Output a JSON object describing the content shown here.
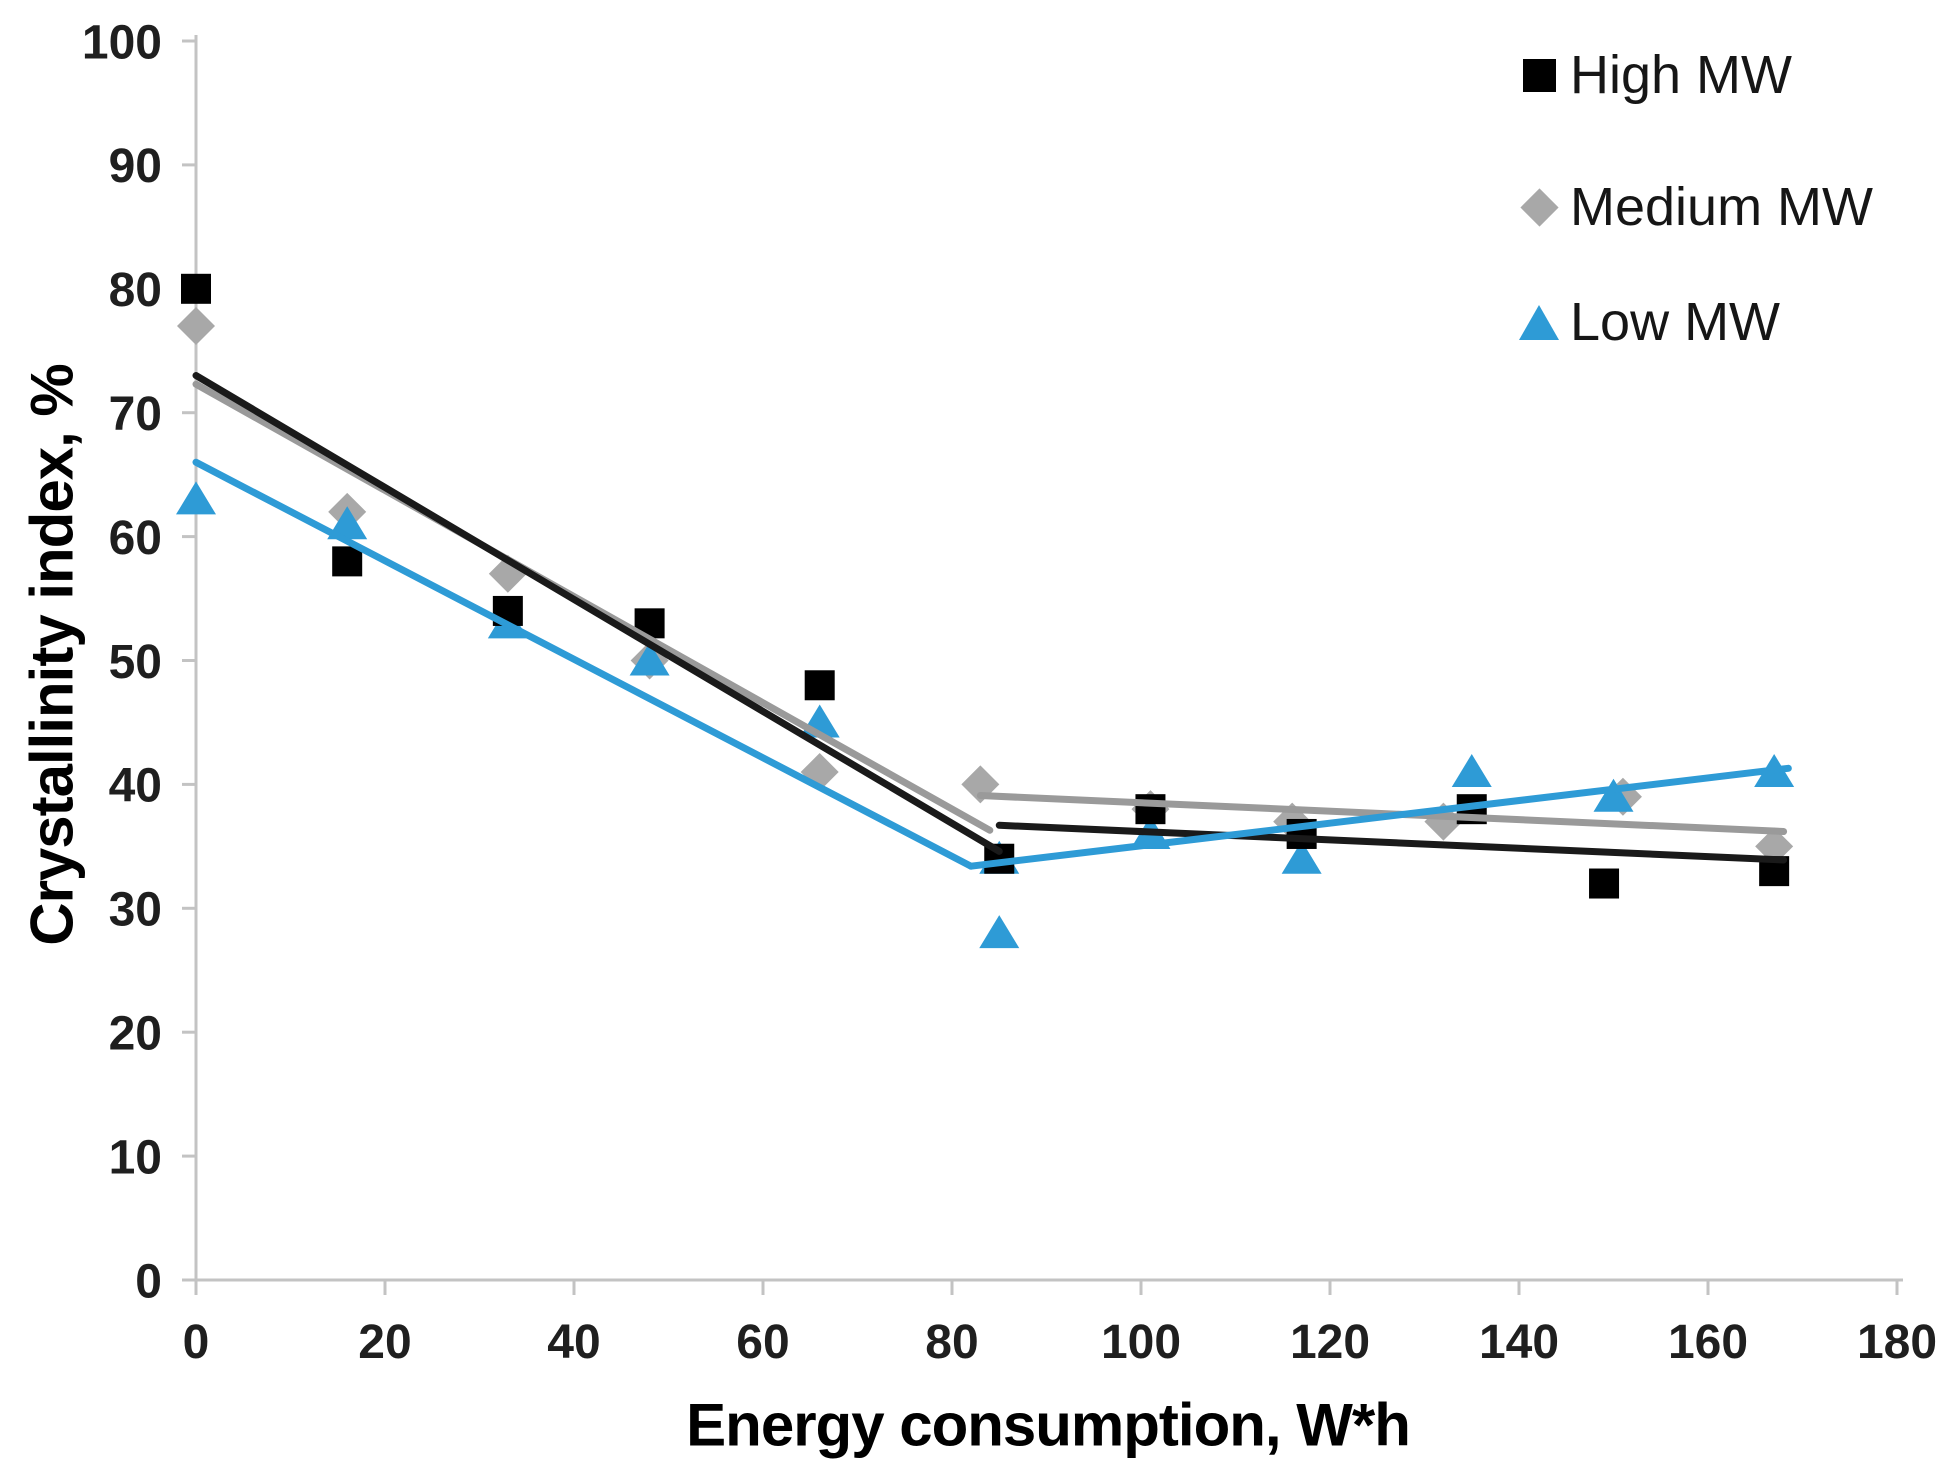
{
  "chart_data": {
    "type": "scatter",
    "title": "",
    "xlabel": "Energy consumption, W*h",
    "ylabel": "Crystallinity index, %",
    "xlim": [
      0,
      180
    ],
    "ylim": [
      0,
      100
    ],
    "x_ticks": [
      0,
      20,
      40,
      60,
      80,
      100,
      120,
      140,
      160,
      180
    ],
    "y_ticks": [
      0,
      10,
      20,
      30,
      40,
      50,
      60,
      70,
      80,
      90,
      100
    ],
    "grid": false,
    "legend_position": "top-right",
    "axis_color": "#C3C3C3",
    "tick_label_color": "#1F1F1F",
    "series": [
      {
        "name": "High MW",
        "marker": "square",
        "color": "#000000",
        "trend_color": "#1A1A1A",
        "points": [
          [
            0,
            80
          ],
          [
            16,
            58
          ],
          [
            33,
            54
          ],
          [
            48,
            53
          ],
          [
            66,
            48
          ],
          [
            85,
            34
          ],
          [
            101,
            38
          ],
          [
            117,
            36
          ],
          [
            135,
            38
          ],
          [
            149,
            32
          ],
          [
            167,
            33
          ]
        ],
        "trend_segments": [
          [
            [
              0,
              73
            ],
            [
              85,
              34.6
            ]
          ],
          [
            [
              85,
              36.7
            ],
            [
              168,
              33.9
            ]
          ]
        ]
      },
      {
        "name": "Medium MW",
        "marker": "diamond",
        "color": "#A8A8A8",
        "trend_color": "#9A9A9A",
        "points": [
          [
            0,
            77
          ],
          [
            16,
            62
          ],
          [
            33,
            57
          ],
          [
            48,
            50
          ],
          [
            66,
            41
          ],
          [
            83,
            40
          ],
          [
            101,
            38
          ],
          [
            116,
            37
          ],
          [
            132,
            37
          ],
          [
            151,
            39
          ],
          [
            167,
            35
          ]
        ],
        "trend_segments": [
          [
            [
              0,
              72.3
            ],
            [
              84,
              36.3
            ]
          ],
          [
            [
              83,
              39.1
            ],
            [
              168,
              36.2
            ]
          ]
        ]
      },
      {
        "name": "Low MW",
        "marker": "triangle",
        "color": "#2E9BD6",
        "trend_color": "#2E9BD6",
        "points": [
          [
            0,
            63
          ],
          [
            16,
            61
          ],
          [
            33,
            53
          ],
          [
            48,
            50
          ],
          [
            66,
            45
          ],
          [
            85,
            34
          ],
          [
            85,
            28
          ],
          [
            101,
            36
          ],
          [
            117,
            34
          ],
          [
            135,
            41
          ],
          [
            150,
            39
          ],
          [
            167,
            41
          ]
        ],
        "trend_segments": [
          [
            [
              0,
              66
            ],
            [
              82,
              33.4
            ]
          ],
          [
            [
              82,
              33.4
            ],
            [
              168.5,
              41.3
            ]
          ]
        ]
      }
    ]
  }
}
